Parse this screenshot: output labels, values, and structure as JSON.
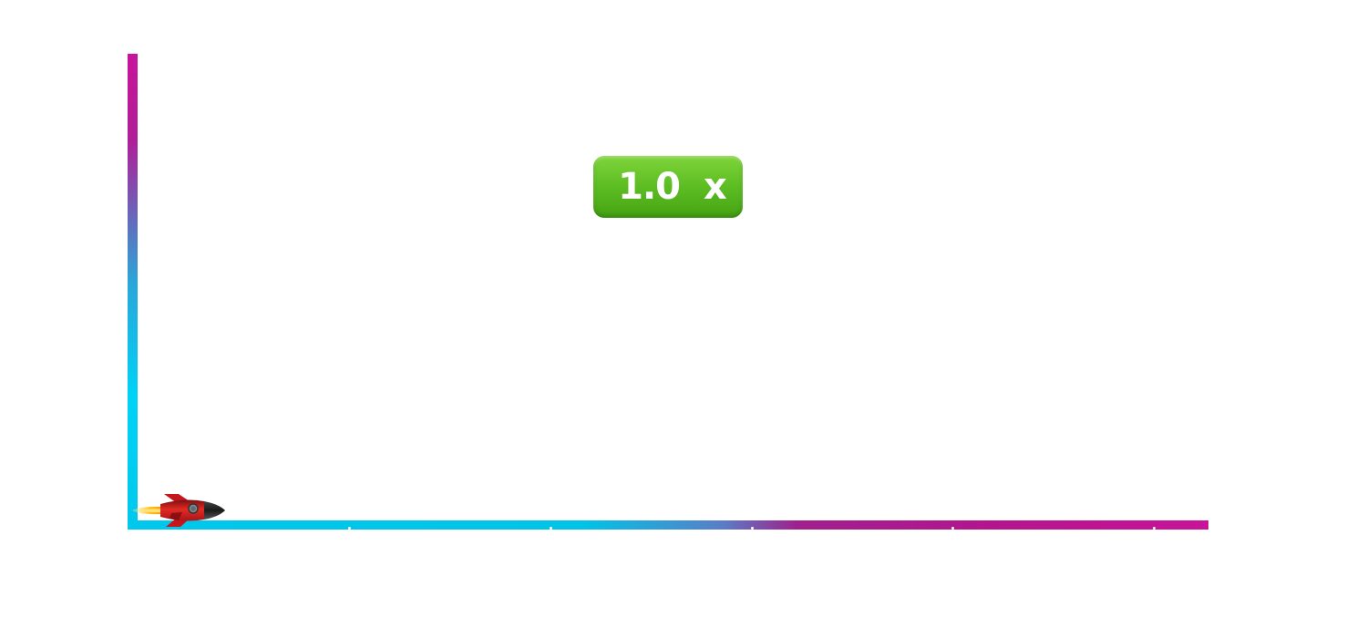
{
  "game": {
    "multiplier": {
      "value": "1.0",
      "suffix": "x",
      "color": "#5cbd23"
    },
    "rocket": {
      "icon": "rocket-icon",
      "body_color": "#e0231f",
      "flame_color": "#ffb400"
    },
    "axes": {
      "start_color": "#00c8ec",
      "end_color": "#c8149a"
    }
  }
}
